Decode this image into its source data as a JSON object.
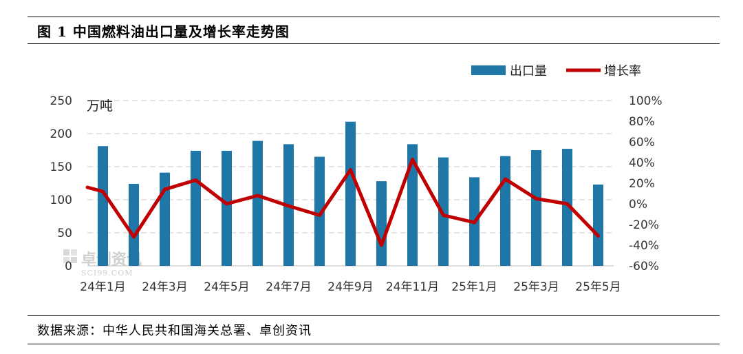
{
  "title": "图 1  中国燃料油出口量及增长率走势图",
  "source": "数据来源：中华人民共和国海关总署、卓创资讯",
  "watermark": {
    "name": "卓创资讯",
    "site": "SCI99.COM"
  },
  "colors": {
    "bar": "#1f77a8",
    "line": "#c00000",
    "grid": "#c8c8c8"
  },
  "chart_data": {
    "type": "bar",
    "legend": {
      "placement": "top-right",
      "bar_label": "出口量",
      "line_label": "增长率"
    },
    "left_axis": {
      "unit": "万吨",
      "ylim": [
        0,
        250
      ],
      "ticks": [
        "0",
        "50",
        "100",
        "150",
        "200",
        "250"
      ]
    },
    "right_axis": {
      "ylim": [
        -60,
        100
      ],
      "ticks": [
        "-60%",
        "-40%",
        "-20%",
        "0%",
        "20%",
        "40%",
        "60%",
        "80%",
        "100%"
      ]
    },
    "x_tick_labels": [
      "24年1月",
      "24年3月",
      "24年5月",
      "24年7月",
      "24年9月",
      "24年11月",
      "25年1月",
      "25年3月",
      "25年5月"
    ],
    "series": [
      {
        "name": "出口量",
        "type": "bar",
        "axis": "left",
        "values": [
          181,
          124,
          141,
          174,
          174,
          189,
          184,
          165,
          218,
          128,
          184,
          164,
          134,
          166,
          175,
          177,
          123
        ]
      },
      {
        "name": "增长率",
        "type": "line",
        "axis": "right",
        "values": [
          12,
          -32,
          14,
          23,
          0,
          8,
          -2,
          -11,
          33,
          -40,
          43,
          -11,
          -18,
          24,
          5,
          0,
          -31
        ],
        "left_edge_value": 16
      }
    ],
    "grid": true
  }
}
